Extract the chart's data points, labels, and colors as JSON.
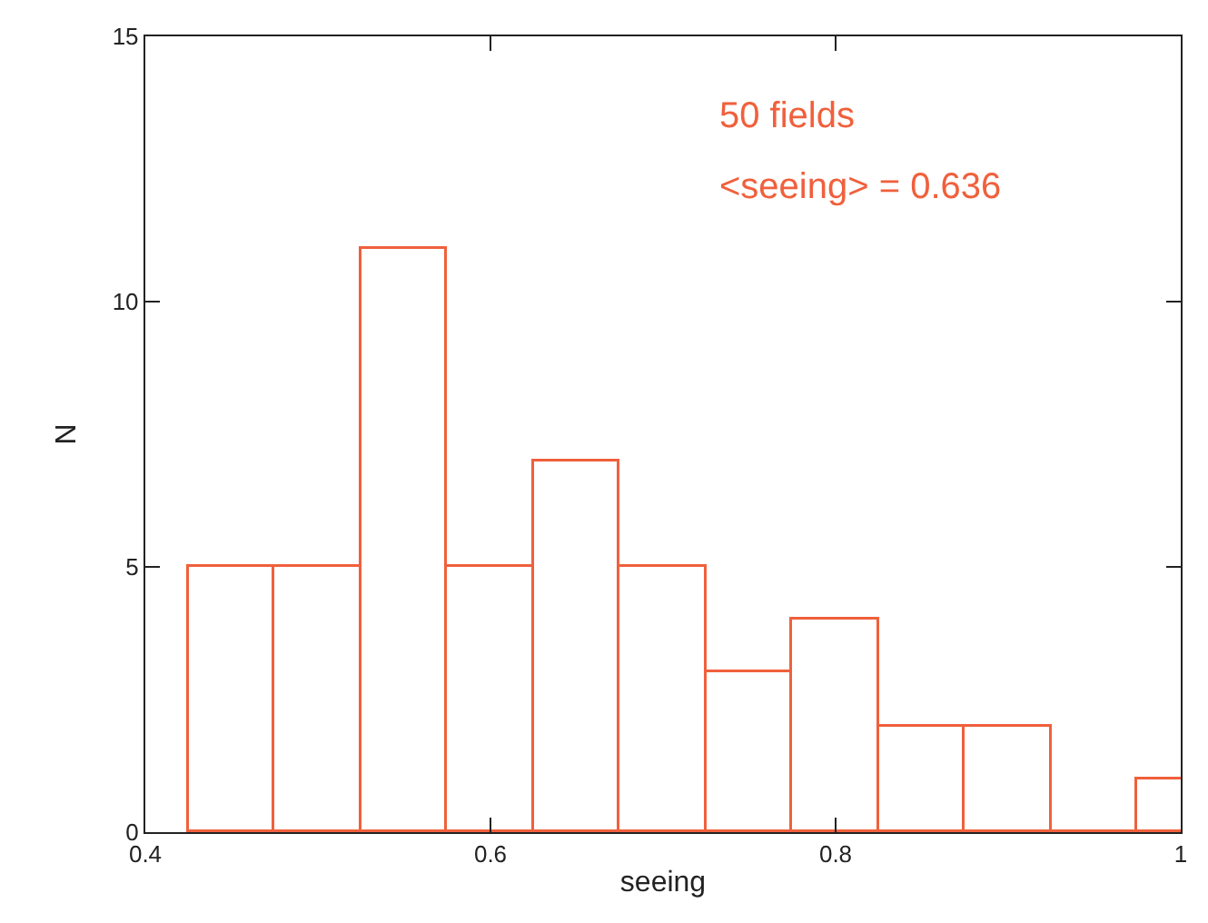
{
  "chart_data": {
    "type": "histogram",
    "xlabel": "seeing",
    "ylabel": "N",
    "bins": [
      0.425,
      0.475,
      0.525,
      0.575,
      0.625,
      0.675,
      0.725,
      0.775,
      0.825,
      0.875,
      0.925,
      0.975,
      1.025
    ],
    "values": [
      5,
      5,
      11,
      5,
      7,
      5,
      3,
      4,
      2,
      2,
      0,
      1
    ],
    "color": "#f0603c",
    "xlim": [
      0.4,
      1
    ],
    "xticks": [
      0.4,
      0.6,
      0.8,
      {
        "value": 1,
        "label": "1"
      }
    ],
    "ylim": [
      0,
      15
    ],
    "yticks": [
      0,
      5,
      10,
      15
    ],
    "annotations": [
      "50 fields",
      "<seeing> = 0.636"
    ]
  }
}
